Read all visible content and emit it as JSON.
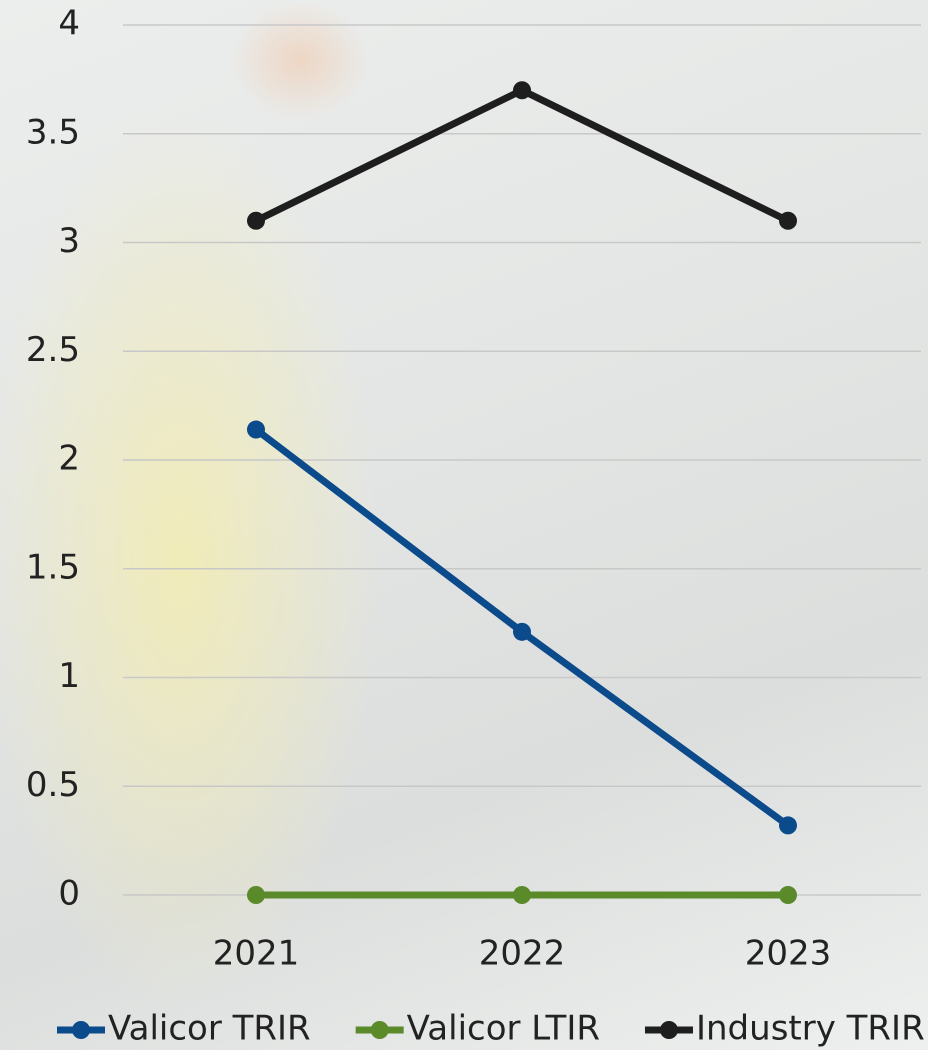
{
  "chart_data": {
    "type": "line",
    "categories": [
      "2021",
      "2022",
      "2023"
    ],
    "series": [
      {
        "name": "Valicor TRIR",
        "color": "#0b4a8b",
        "values": [
          2.14,
          1.21,
          0.32
        ]
      },
      {
        "name": "Valicor LTIR",
        "color": "#5b8a2b",
        "values": [
          0,
          0,
          0
        ]
      },
      {
        "name": "Industry TRIR",
        "color": "#1e1e1e",
        "values": [
          3.1,
          3.7,
          3.1
        ]
      }
    ],
    "ylim": [
      0,
      4
    ],
    "yticks": [
      0,
      0.5,
      1,
      1.5,
      2,
      2.5,
      3,
      3.5,
      4
    ],
    "grid": true,
    "legend": "bottom"
  }
}
